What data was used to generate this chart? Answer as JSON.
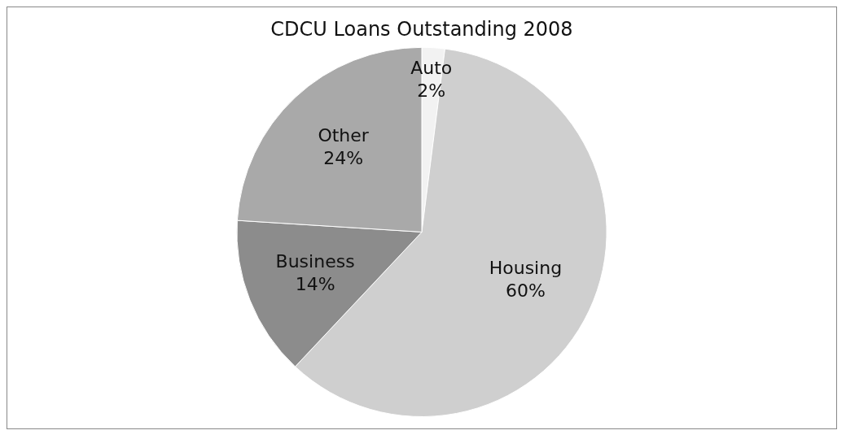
{
  "chart_data": {
    "type": "pie",
    "title": "CDCU Loans Outstanding 2008",
    "categories": [
      "Auto",
      "Housing",
      "Business",
      "Other"
    ],
    "values": [
      2,
      60,
      14,
      24
    ],
    "colors": [
      "#f2f2f2",
      "#cfcfcf",
      "#8c8c8c",
      "#a9a9a9"
    ],
    "value_labels": [
      "2%",
      "60%",
      "14%",
      "24%"
    ],
    "legend": false
  }
}
